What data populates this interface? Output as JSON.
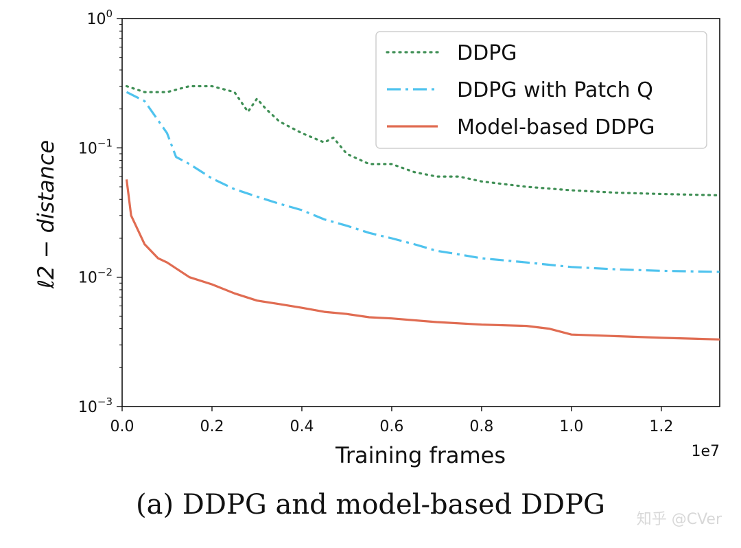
{
  "chart_data": {
    "type": "line",
    "title": "",
    "xlabel": "Training frames",
    "ylabel": "ℓ2 − distance",
    "x_offset_label": "1e7",
    "x_scale": "linear",
    "y_scale": "log",
    "xlim": [
      0,
      1.33
    ],
    "ylim": [
      0.001,
      1
    ],
    "x_ticks": [
      0.0,
      0.2,
      0.4,
      0.6,
      0.8,
      1.0,
      1.2
    ],
    "x_tick_labels": [
      "0.0",
      "0.2",
      "0.4",
      "0.6",
      "0.8",
      "1.0",
      "1.2"
    ],
    "y_ticks": [
      0.001,
      0.01,
      0.1,
      1
    ],
    "y_tick_labels": [
      {
        "base": "10",
        "exp": "−3"
      },
      {
        "base": "10",
        "exp": "−2"
      },
      {
        "base": "10",
        "exp": "−1"
      },
      {
        "base": "10",
        "exp": "0"
      }
    ],
    "grid": false,
    "legend_position": "top-right",
    "series": [
      {
        "name": "DDPG",
        "style": "dotted",
        "color": "#3f8f55",
        "x": [
          0.01,
          0.05,
          0.1,
          0.15,
          0.2,
          0.25,
          0.28,
          0.3,
          0.32,
          0.35,
          0.4,
          0.45,
          0.47,
          0.5,
          0.55,
          0.6,
          0.65,
          0.7,
          0.75,
          0.8,
          0.9,
          1.0,
          1.1,
          1.2,
          1.33
        ],
        "values": [
          0.3,
          0.27,
          0.27,
          0.3,
          0.3,
          0.27,
          0.19,
          0.24,
          0.2,
          0.16,
          0.13,
          0.11,
          0.12,
          0.09,
          0.075,
          0.075,
          0.065,
          0.06,
          0.06,
          0.055,
          0.05,
          0.047,
          0.045,
          0.044,
          0.043
        ]
      },
      {
        "name": "DDPG with Patch Q",
        "style": "dashdot",
        "color": "#4fc3ee",
        "x": [
          0.01,
          0.05,
          0.1,
          0.12,
          0.15,
          0.2,
          0.25,
          0.3,
          0.35,
          0.4,
          0.45,
          0.5,
          0.55,
          0.6,
          0.65,
          0.7,
          0.75,
          0.8,
          0.85,
          0.9,
          1.0,
          1.1,
          1.2,
          1.33
        ],
        "values": [
          0.27,
          0.23,
          0.13,
          0.085,
          0.075,
          0.058,
          0.048,
          0.042,
          0.037,
          0.033,
          0.028,
          0.025,
          0.022,
          0.02,
          0.018,
          0.016,
          0.015,
          0.014,
          0.0135,
          0.013,
          0.012,
          0.0115,
          0.0112,
          0.011
        ]
      },
      {
        "name": "Model-based DDPG",
        "style": "solid",
        "color": "#e06c52",
        "x": [
          0.01,
          0.02,
          0.05,
          0.08,
          0.1,
          0.15,
          0.2,
          0.25,
          0.3,
          0.35,
          0.4,
          0.45,
          0.5,
          0.55,
          0.6,
          0.7,
          0.8,
          0.9,
          0.95,
          1.0,
          1.1,
          1.2,
          1.33
        ],
        "values": [
          0.057,
          0.03,
          0.018,
          0.014,
          0.013,
          0.01,
          0.0088,
          0.0075,
          0.0066,
          0.0062,
          0.0058,
          0.0054,
          0.0052,
          0.0049,
          0.0048,
          0.0045,
          0.0043,
          0.0042,
          0.004,
          0.0036,
          0.0035,
          0.0034,
          0.0033
        ]
      }
    ]
  },
  "caption": "(a) DDPG and model-based DDPG",
  "watermark": "知乎 @CVer"
}
